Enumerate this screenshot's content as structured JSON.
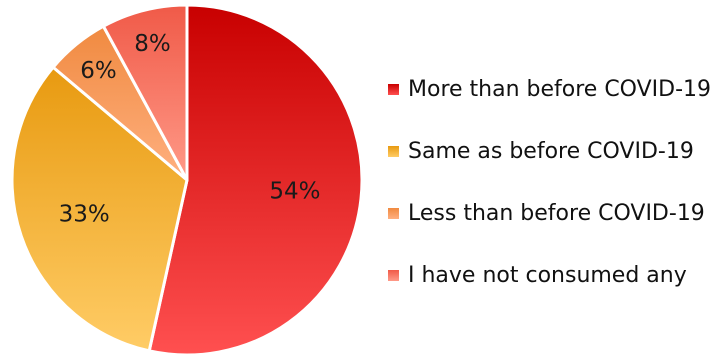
{
  "chart_data": {
    "type": "pie",
    "title": "",
    "series": [
      {
        "name": "More than before COVID-19",
        "value": 54,
        "label": "54%",
        "color_top": "#c80000",
        "color_bottom": "#ff5050"
      },
      {
        "name": "Same as before COVID-19",
        "value": 33,
        "label": "33%",
        "color_top": "#e89a10",
        "color_bottom": "#ffcc66"
      },
      {
        "name": "Less than before COVID-19",
        "value": 6,
        "label": "6%",
        "color_top": "#f08a40",
        "color_bottom": "#ffb080"
      },
      {
        "name": "I have not consumed any",
        "value": 8,
        "label": "8%",
        "color_top": "#f05a48",
        "color_bottom": "#ff9a88"
      }
    ],
    "legend_position": "right",
    "start_angle": "top",
    "direction": "clockwise"
  }
}
